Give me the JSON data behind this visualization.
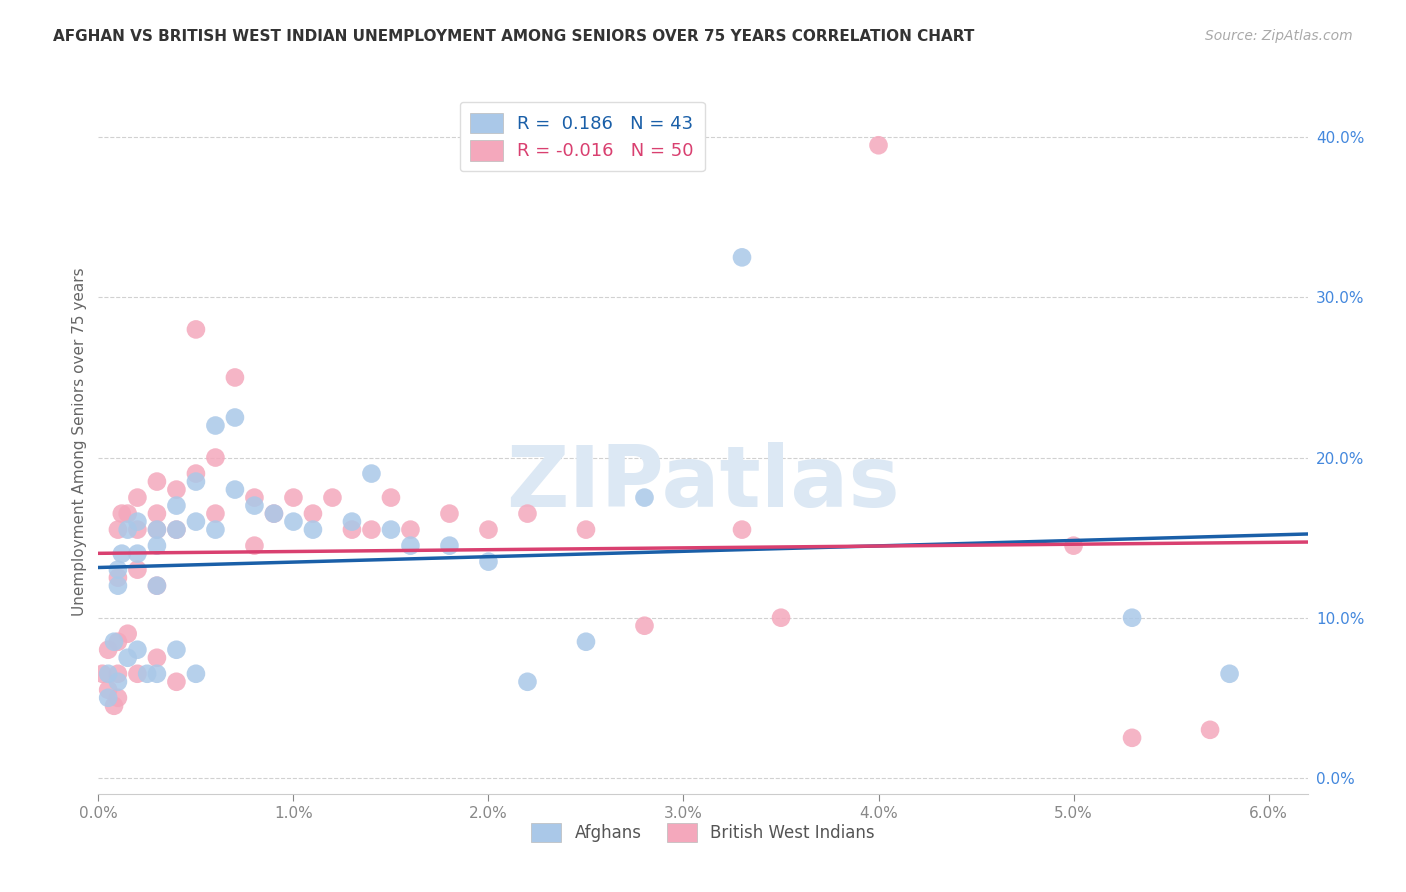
{
  "title": "AFGHAN VS BRITISH WEST INDIAN UNEMPLOYMENT AMONG SENIORS OVER 75 YEARS CORRELATION CHART",
  "source": "Source: ZipAtlas.com",
  "ylabel": "Unemployment Among Seniors over 75 years",
  "xlim": [
    0.0,
    0.062
  ],
  "ylim": [
    -0.01,
    0.43
  ],
  "xticks": [
    0.0,
    0.01,
    0.02,
    0.03,
    0.04,
    0.05,
    0.06
  ],
  "xtick_labels": [
    "0.0%",
    "1.0%",
    "2.0%",
    "3.0%",
    "4.0%",
    "5.0%",
    "6.0%"
  ],
  "yticks_right": [
    0.0,
    0.1,
    0.2,
    0.3,
    0.4
  ],
  "ytick_labels_right": [
    "0.0%",
    "10.0%",
    "20.0%",
    "30.0%",
    "40.0%"
  ],
  "series1_name": "Afghans",
  "series2_name": "British West Indians",
  "series1_color": "#aac8e8",
  "series2_color": "#f4a8bc",
  "series1_line_color": "#1a5fa8",
  "series2_line_color": "#d94070",
  "r1": 0.186,
  "r2": -0.016,
  "n1": 43,
  "n2": 50,
  "watermark_text": "ZIPatlas",
  "grid_color": "#cccccc",
  "background_color": "#ffffff",
  "afghans_x": [
    0.0005,
    0.0005,
    0.0008,
    0.001,
    0.001,
    0.001,
    0.0012,
    0.0015,
    0.0015,
    0.002,
    0.002,
    0.002,
    0.0025,
    0.003,
    0.003,
    0.003,
    0.003,
    0.004,
    0.004,
    0.004,
    0.005,
    0.005,
    0.005,
    0.006,
    0.006,
    0.007,
    0.007,
    0.008,
    0.009,
    0.01,
    0.011,
    0.013,
    0.014,
    0.015,
    0.016,
    0.018,
    0.02,
    0.022,
    0.025,
    0.028,
    0.033,
    0.053,
    0.058
  ],
  "afghans_y": [
    0.065,
    0.05,
    0.085,
    0.13,
    0.12,
    0.06,
    0.14,
    0.155,
    0.075,
    0.16,
    0.14,
    0.08,
    0.065,
    0.155,
    0.145,
    0.12,
    0.065,
    0.17,
    0.155,
    0.08,
    0.185,
    0.16,
    0.065,
    0.22,
    0.155,
    0.225,
    0.18,
    0.17,
    0.165,
    0.16,
    0.155,
    0.16,
    0.19,
    0.155,
    0.145,
    0.145,
    0.135,
    0.06,
    0.085,
    0.175,
    0.325,
    0.1,
    0.065
  ],
  "bwi_x": [
    0.0002,
    0.0005,
    0.0005,
    0.0008,
    0.001,
    0.001,
    0.001,
    0.001,
    0.001,
    0.0012,
    0.0015,
    0.0015,
    0.002,
    0.002,
    0.002,
    0.002,
    0.003,
    0.003,
    0.003,
    0.003,
    0.003,
    0.004,
    0.004,
    0.004,
    0.005,
    0.005,
    0.006,
    0.006,
    0.007,
    0.008,
    0.008,
    0.009,
    0.01,
    0.011,
    0.012,
    0.013,
    0.014,
    0.015,
    0.016,
    0.018,
    0.02,
    0.022,
    0.025,
    0.028,
    0.033,
    0.035,
    0.04,
    0.05,
    0.053,
    0.057
  ],
  "bwi_y": [
    0.065,
    0.08,
    0.055,
    0.045,
    0.155,
    0.125,
    0.085,
    0.065,
    0.05,
    0.165,
    0.165,
    0.09,
    0.175,
    0.155,
    0.13,
    0.065,
    0.185,
    0.165,
    0.155,
    0.12,
    0.075,
    0.18,
    0.155,
    0.06,
    0.28,
    0.19,
    0.2,
    0.165,
    0.25,
    0.175,
    0.145,
    0.165,
    0.175,
    0.165,
    0.175,
    0.155,
    0.155,
    0.175,
    0.155,
    0.165,
    0.155,
    0.165,
    0.155,
    0.095,
    0.155,
    0.1,
    0.395,
    0.145,
    0.025,
    0.03
  ]
}
